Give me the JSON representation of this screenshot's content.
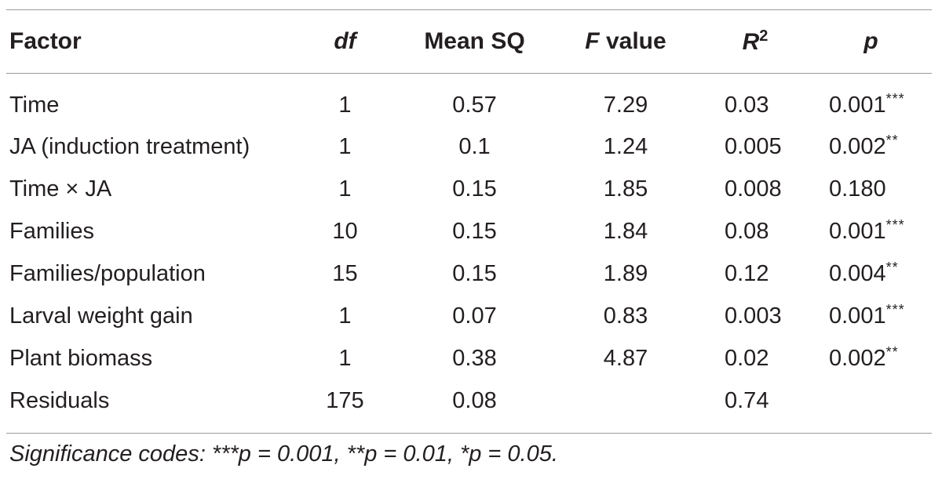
{
  "table": {
    "headers": {
      "factor": "Factor",
      "df": "df",
      "mean_sq": "Mean SQ",
      "f_value_italic": "F",
      "f_value_rest": " value",
      "r2_base": "R",
      "r2_sup": "2",
      "p": "p"
    },
    "rows": [
      {
        "factor": "Time",
        "df": "1",
        "mean_sq": "0.57",
        "f_value": "7.29",
        "r2": "0.03",
        "p": "0.001",
        "stars": "***"
      },
      {
        "factor": "JA (induction treatment)",
        "df": "1",
        "mean_sq": "0.1",
        "f_value": "1.24",
        "r2": "0.005",
        "p": "0.002",
        "stars": "**"
      },
      {
        "factor": "Time × JA",
        "df": "1",
        "mean_sq": "0.15",
        "f_value": "1.85",
        "r2": "0.008",
        "p": "0.180",
        "stars": ""
      },
      {
        "factor": "Families",
        "df": "10",
        "mean_sq": "0.15",
        "f_value": "1.84",
        "r2": "0.08",
        "p": "0.001",
        "stars": "***"
      },
      {
        "factor": "Families/population",
        "df": "15",
        "mean_sq": "0.15",
        "f_value": "1.89",
        "r2": "0.12",
        "p": "0.004",
        "stars": "**"
      },
      {
        "factor": "Larval weight gain",
        "df": "1",
        "mean_sq": "0.07",
        "f_value": "0.83",
        "r2": "0.003",
        "p": "0.001",
        "stars": "***"
      },
      {
        "factor": "Plant biomass",
        "df": "1",
        "mean_sq": "0.38",
        "f_value": "4.87",
        "r2": "0.02",
        "p": "0.002",
        "stars": "**"
      },
      {
        "factor": "Residuals",
        "df": "175",
        "mean_sq": "0.08",
        "f_value": "",
        "r2": "0.74",
        "p": "",
        "stars": ""
      }
    ]
  },
  "footnote": "Significance codes: ***p = 0.001, **p = 0.01, *p = 0.05."
}
